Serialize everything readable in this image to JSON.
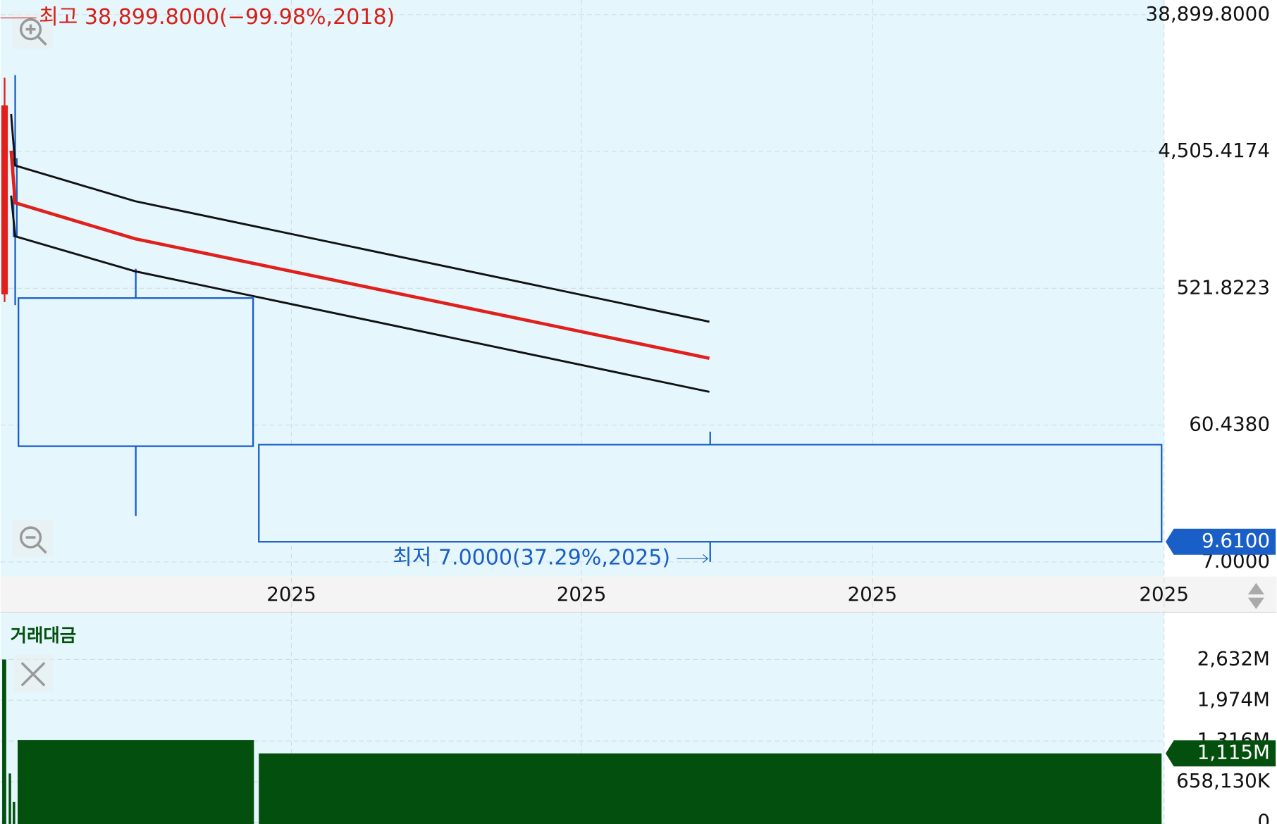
{
  "chart_data": [
    {
      "type": "candlestick",
      "log_scale": true,
      "grid": true,
      "ylim": [
        5.56,
        49000
      ],
      "yticks": [
        {
          "value": 7,
          "label": "7.0000"
        },
        {
          "value": 60.438,
          "label": "60.4380"
        },
        {
          "value": 521.8223,
          "label": "521.8223"
        },
        {
          "value": 4505.4174,
          "label": "4,505.4174"
        },
        {
          "value": 38899.8,
          "label": "38,899.8000"
        }
      ],
      "x_tick_labels": [
        "2025",
        "2025",
        "2025",
        "2025"
      ],
      "up_color": "#e0201c",
      "down_color": "#1a5fc8",
      "open": [
        480,
        4000,
        447,
        44.4
      ],
      "high": [
        14400,
        15000,
        709,
        54.5
      ],
      "low": [
        420,
        400,
        14.4,
        7
      ],
      "close": [
        9200,
        1183,
        43.3,
        9.61
      ],
      "series": [
        {
          "color": "#111111",
          "values": [
            8115,
            3612,
            2058,
            308
          ]
        },
        {
          "color": "#e0201c",
          "values": [
            4560,
            2005,
            1139,
            173
          ]
        },
        {
          "color": "#111111",
          "values": [
            2246,
            1183,
            682,
            102
          ]
        }
      ],
      "annotations": [
        "최고 38,899.8000(−99.98%,2018)",
        "최저 7.0000(37.29%,2025)"
      ],
      "current_value": {
        "value": 9.61,
        "label": "9.6100"
      }
    },
    {
      "type": "bar",
      "title": "거래대금",
      "color": "#03500e",
      "grid": true,
      "ylim": [
        0,
        3356000000
      ],
      "yticks": [
        {
          "value": 0,
          "label": "0"
        },
        {
          "value": 658130000,
          "label": "658,130K"
        },
        {
          "value": 1316000000,
          "label": "1,316M"
        },
        {
          "value": 1974000000,
          "label": "1,974M"
        },
        {
          "value": 2632000000,
          "label": "2,632M"
        }
      ],
      "values": [
        2632000000,
        790000000,
        329000000,
        1329000000,
        1115000000
      ],
      "current_value": {
        "value": 1115000000,
        "label": "1,115M"
      }
    }
  ]
}
